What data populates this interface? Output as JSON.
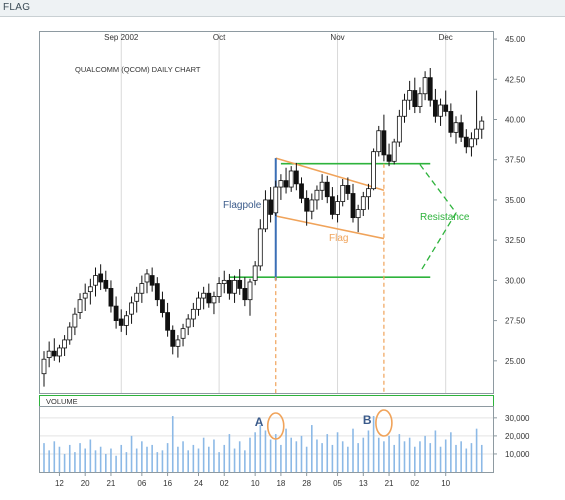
{
  "window": {
    "title": "FLAG"
  },
  "colors": {
    "candle": "#111111",
    "wick": "#111111",
    "grid": "#d9d9d9",
    "flagpole": "#3a6fb5",
    "flag": "#f0a35a",
    "resistance": "#2eb33c",
    "volume": "#8cb9e6",
    "ellipse": "#f0a35a",
    "label_blue": "#3a5a8a",
    "frame": "#2eb33c"
  },
  "chart_data": [
    {
      "type": "candlestick",
      "title": "QUALCOMM (QCOM) DAILY CHART",
      "ylim": [
        23.0,
        45.5
      ],
      "y_ticks": [
        25.0,
        27.5,
        30.0,
        32.5,
        35.0,
        37.5,
        40.0,
        42.5,
        45.0
      ],
      "y_tick_labels": [
        "25.00",
        "27.50",
        "30.00",
        "32.50",
        "35.00",
        "37.50",
        "40.00",
        "42.50",
        "45.00"
      ],
      "month_labels": [
        {
          "label": "Sep 2002",
          "index": 15
        },
        {
          "label": "Oct",
          "index": 34
        },
        {
          "label": "Nov",
          "index": 57
        },
        {
          "label": "Dec",
          "index": 78
        }
      ],
      "x_tick_labels": [
        {
          "label": "12",
          "index": 3
        },
        {
          "label": "20",
          "index": 8
        },
        {
          "label": "21",
          "index": 13
        },
        {
          "label": "06",
          "index": 19
        },
        {
          "label": "16",
          "index": 24
        },
        {
          "label": "24",
          "index": 30
        },
        {
          "label": "02",
          "index": 35
        },
        {
          "label": "10",
          "index": 41
        },
        {
          "label": "18",
          "index": 46
        },
        {
          "label": "28",
          "index": 51
        },
        {
          "label": "05",
          "index": 57
        },
        {
          "label": "13",
          "index": 62
        },
        {
          "label": "21",
          "index": 67
        },
        {
          "label": "02",
          "index": 72
        },
        {
          "label": "10",
          "index": 78
        }
      ],
      "candles": [
        [
          24.2,
          25.6,
          23.4,
          25.1
        ],
        [
          25.2,
          26.2,
          24.6,
          25.6
        ],
        [
          25.6,
          26.4,
          25.0,
          25.3
        ],
        [
          25.3,
          26.0,
          24.9,
          25.8
        ],
        [
          25.8,
          26.6,
          25.3,
          26.3
        ],
        [
          26.3,
          27.4,
          26.0,
          27.1
        ],
        [
          27.1,
          28.3,
          26.6,
          27.9
        ],
        [
          28.0,
          29.2,
          27.6,
          28.8
        ],
        [
          28.9,
          29.8,
          28.1,
          29.2
        ],
        [
          29.3,
          30.1,
          28.5,
          29.6
        ],
        [
          29.7,
          30.8,
          29.0,
          30.3
        ],
        [
          30.4,
          31.0,
          29.4,
          29.9
        ],
        [
          30.0,
          30.6,
          29.3,
          29.5
        ],
        [
          29.5,
          30.0,
          28.0,
          28.4
        ],
        [
          28.4,
          29.0,
          27.0,
          27.5
        ],
        [
          27.6,
          28.2,
          26.8,
          27.2
        ],
        [
          27.2,
          28.1,
          26.6,
          27.8
        ],
        [
          27.9,
          29.0,
          27.3,
          28.6
        ],
        [
          28.7,
          29.6,
          28.0,
          29.2
        ],
        [
          29.2,
          30.3,
          28.6,
          29.8
        ],
        [
          29.9,
          30.7,
          29.2,
          30.4
        ],
        [
          30.3,
          30.8,
          29.3,
          29.7
        ],
        [
          29.8,
          30.2,
          28.4,
          28.8
        ],
        [
          28.8,
          29.3,
          27.7,
          28.0
        ],
        [
          28.0,
          28.6,
          26.5,
          26.9
        ],
        [
          26.9,
          27.2,
          25.4,
          25.9
        ],
        [
          25.9,
          26.6,
          25.2,
          26.3
        ],
        [
          26.4,
          27.3,
          25.9,
          27.0
        ],
        [
          27.1,
          27.9,
          26.6,
          27.6
        ],
        [
          27.6,
          28.6,
          27.1,
          28.2
        ],
        [
          28.2,
          29.3,
          27.8,
          28.9
        ],
        [
          28.9,
          29.6,
          28.2,
          29.2
        ],
        [
          29.2,
          29.8,
          28.3,
          28.6
        ],
        [
          28.6,
          29.3,
          27.9,
          29.0
        ],
        [
          29.0,
          30.2,
          28.6,
          29.8
        ],
        [
          29.8,
          30.6,
          29.2,
          30.0
        ],
        [
          30.0,
          30.4,
          28.8,
          29.2
        ],
        [
          29.2,
          30.3,
          28.6,
          30.0
        ],
        [
          30.0,
          30.7,
          29.1,
          29.5
        ],
        [
          29.5,
          30.2,
          28.4,
          28.8
        ],
        [
          28.8,
          30.1,
          27.8,
          29.9
        ],
        [
          30.0,
          31.2,
          29.7,
          30.9
        ],
        [
          30.9,
          33.8,
          30.6,
          33.2
        ],
        [
          33.2,
          35.6,
          33.0,
          35.0
        ],
        [
          35.0,
          35.8,
          33.6,
          34.1
        ],
        [
          34.2,
          36.2,
          34.0,
          35.8
        ],
        [
          35.8,
          36.6,
          35.0,
          36.2
        ],
        [
          36.2,
          37.0,
          35.4,
          35.8
        ],
        [
          35.8,
          37.1,
          35.5,
          36.8
        ],
        [
          36.8,
          37.3,
          35.6,
          36.0
        ],
        [
          36.0,
          36.4,
          34.8,
          35.1
        ],
        [
          35.1,
          35.6,
          33.4,
          34.3
        ],
        [
          34.3,
          35.4,
          33.8,
          35.0
        ],
        [
          35.0,
          35.9,
          34.4,
          35.6
        ],
        [
          35.6,
          36.6,
          35.0,
          36.1
        ],
        [
          36.1,
          36.5,
          34.8,
          35.2
        ],
        [
          35.2,
          35.8,
          33.8,
          34.1
        ],
        [
          34.1,
          35.3,
          33.6,
          34.9
        ],
        [
          34.9,
          36.3,
          34.6,
          35.9
        ],
        [
          35.9,
          36.4,
          35.0,
          35.4
        ],
        [
          35.4,
          36.0,
          33.6,
          33.9
        ],
        [
          33.9,
          34.7,
          33.0,
          34.4
        ],
        [
          34.4,
          35.5,
          34.0,
          35.2
        ],
        [
          35.2,
          36.0,
          34.4,
          35.7
        ],
        [
          35.7,
          38.2,
          35.6,
          38.0
        ],
        [
          38.0,
          39.6,
          37.7,
          39.3
        ],
        [
          39.3,
          40.3,
          37.4,
          37.8
        ],
        [
          37.8,
          38.5,
          37.1,
          37.4
        ],
        [
          37.4,
          38.8,
          37.2,
          38.6
        ],
        [
          38.6,
          40.6,
          38.3,
          40.2
        ],
        [
          40.2,
          41.6,
          39.8,
          41.2
        ],
        [
          41.2,
          42.4,
          40.6,
          41.8
        ],
        [
          41.8,
          42.6,
          40.4,
          40.8
        ],
        [
          40.8,
          42.0,
          40.4,
          41.6
        ],
        [
          41.6,
          43.0,
          41.2,
          42.6
        ],
        [
          42.6,
          43.2,
          40.8,
          41.2
        ],
        [
          41.2,
          41.9,
          39.8,
          40.2
        ],
        [
          40.2,
          41.3,
          39.6,
          40.9
        ],
        [
          40.9,
          41.8,
          40.2,
          40.5
        ],
        [
          40.5,
          41.0,
          38.9,
          39.2
        ],
        [
          39.2,
          40.2,
          38.5,
          39.8
        ],
        [
          39.8,
          40.3,
          38.6,
          38.9
        ],
        [
          38.9,
          39.4,
          37.9,
          38.3
        ],
        [
          38.3,
          39.2,
          37.7,
          38.8
        ],
        [
          38.8,
          41.8,
          38.4,
          39.4
        ],
        [
          39.4,
          40.2,
          38.8,
          39.9
        ]
      ],
      "annotations": {
        "flagpole_label": "Flagpole",
        "flag_label": "Flag",
        "resistance_label": "Resistance"
      }
    },
    {
      "type": "bar",
      "title": "VOLUME",
      "ylim": [
        0,
        36000
      ],
      "y_ticks": [
        10000,
        20000,
        30000
      ],
      "y_tick_labels": [
        "10,000",
        "20,000",
        "30,000"
      ],
      "values": [
        16000,
        12000,
        17000,
        14000,
        10000,
        15000,
        11000,
        16000,
        13000,
        18000,
        12000,
        14000,
        10000,
        13000,
        9000,
        15000,
        11000,
        20000,
        13000,
        17000,
        14000,
        15000,
        11000,
        12000,
        16000,
        31000,
        14000,
        17000,
        12000,
        15000,
        13000,
        19000,
        14000,
        18000,
        11000,
        15000,
        21000,
        13000,
        17000,
        12000,
        19000,
        22000,
        26000,
        23000,
        18000,
        21000,
        15000,
        24000,
        19000,
        17000,
        20000,
        14000,
        26000,
        18000,
        16000,
        21000,
        15000,
        22000,
        17000,
        14000,
        24000,
        16000,
        19000,
        23000,
        31000,
        19000,
        17000,
        20000,
        15000,
        21000,
        17000,
        19000,
        14000,
        17000,
        20000,
        16000,
        23000,
        14000,
        18000,
        22000,
        15000,
        17000,
        13000,
        16000,
        24000,
        15000
      ],
      "markers": [
        "A",
        "B"
      ]
    }
  ]
}
